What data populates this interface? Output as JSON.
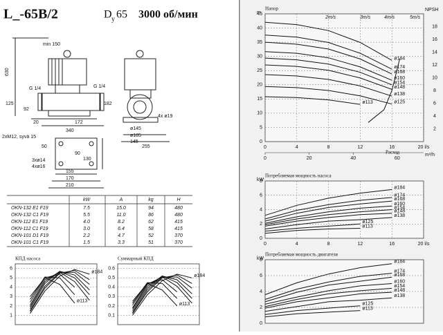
{
  "header": {
    "title": "L_-65B/2",
    "dn_letter": "D",
    "dn_sub": "у",
    "dn_value": "65",
    "speed": "3000 об/мин"
  },
  "drawing": {
    "labels": [
      "min 150",
      "630",
      "G 1/4",
      "G 1/4",
      "125",
      "92",
      "20",
      "172",
      "340",
      "2xM12, syvä 15",
      "182",
      "4x ø19",
      "ø145",
      "ø185",
      "145",
      "255",
      "50",
      "90",
      "130",
      "3xø14",
      "4xø16",
      "155",
      "170",
      "210"
    ]
  },
  "table": {
    "header": [
      "kW",
      "A",
      "kg",
      "H"
    ],
    "rows": [
      [
        "OKN-132 E1 F19",
        "7.5",
        "15.0",
        "94",
        "480"
      ],
      [
        "OKN-132 C1 F19",
        "5.5",
        "11.0",
        "86",
        "480"
      ],
      [
        "OKN-112 E1 F19",
        "4.0",
        "8.2",
        "62",
        "415"
      ],
      [
        "OKN-112 C1 F19",
        "3.0",
        "6.4",
        "58",
        "415"
      ],
      [
        "OKN-101 D1 F19",
        "2.2",
        "4.7",
        "52",
        "370"
      ],
      [
        "OKN-101 C1 F19",
        "1.5",
        "3.3",
        "51",
        "370"
      ]
    ]
  },
  "chart_data": [
    {
      "type": "line",
      "title": "Напор",
      "y_label": "m",
      "x_label": "Расход",
      "color": "#111",
      "x": [
        0,
        4,
        8,
        12,
        16
      ],
      "xlim": [
        0,
        20
      ],
      "xticks": [
        0,
        4,
        8,
        12,
        16,
        {
          "value": 20,
          "label": "20 l/s"
        }
      ],
      "x2lim": [
        0,
        72
      ],
      "x2ticks": [
        0,
        20,
        40,
        60
      ],
      "x2_label": "m³/h",
      "ylim": [
        0,
        45
      ],
      "yticks": [
        0,
        5,
        10,
        15,
        20,
        25,
        30,
        35,
        40,
        45
      ],
      "y2_label": "NPSH",
      "y2lim": [
        0,
        20
      ],
      "y2ticks": [
        2,
        4,
        6,
        8,
        10,
        12,
        14,
        16,
        18
      ],
      "velocity_labels": [
        "2m/s",
        "3m/s",
        "4m/s",
        "5m/s"
      ],
      "series": [
        {
          "name": "ø184",
          "values": [
            42,
            41.2,
            39.1,
            34.9,
            28.6
          ]
        },
        {
          "name": "ø174",
          "values": [
            37.5,
            36.8,
            34.9,
            31.1,
            25.5
          ]
        },
        {
          "name": "ø168",
          "values": [
            35,
            34.3,
            32.6,
            29.1,
            23.8
          ]
        },
        {
          "name": "ø160",
          "values": [
            31.7,
            31.1,
            29.5,
            26.3,
            21.6
          ]
        },
        {
          "name": "ø154",
          "values": [
            29.4,
            28.8,
            27.3,
            24.4,
            20
          ]
        },
        {
          "name": "ø148",
          "values": [
            27,
            26.5,
            25.1,
            22.4,
            18.4
          ]
        },
        {
          "name": "ø138",
          "values": [
            23.6,
            23.1,
            21.9,
            19.6,
            16
          ]
        },
        {
          "name": "ø125",
          "values": [
            19.4,
            19,
            18,
            16.1,
            13.2
          ]
        },
        {
          "name": "ø113",
          "values": [
            15.8,
            15.5,
            14.7,
            13.1,
            null
          ]
        },
        {
          "axis": "y2",
          "x": [
            13,
            15,
            16,
            17
          ],
          "values": [
            3,
            5,
            8,
            13
          ]
        }
      ]
    },
    {
      "type": "line",
      "title": "Потребляемая мощность насоса",
      "y_label": "kW",
      "color": "#111",
      "x": [
        0,
        4,
        8,
        12,
        16
      ],
      "xlim": [
        0,
        20
      ],
      "xticks": [
        0,
        4,
        8,
        12,
        16,
        {
          "value": 20,
          "label": "20 l/s"
        }
      ],
      "ylim": [
        0,
        8
      ],
      "yticks": [
        0,
        2,
        4,
        6,
        8
      ],
      "series": [
        {
          "name": "ø184",
          "values": [
            3.2,
            4.6,
            5.6,
            6.3,
            6.8
          ]
        },
        {
          "name": "ø174",
          "values": [
            2.7,
            3.9,
            4.7,
            5.3,
            5.7
          ]
        },
        {
          "name": "ø168",
          "values": [
            2.4,
            3.5,
            4.3,
            4.8,
            5.2
          ]
        },
        {
          "name": "ø160",
          "values": [
            2.1,
            3.0,
            3.7,
            4.2,
            4.5
          ]
        },
        {
          "name": "ø154",
          "values": [
            1.9,
            2.7,
            3.3,
            3.7,
            4.0
          ]
        },
        {
          "name": "ø148",
          "values": [
            1.7,
            2.4,
            2.9,
            3.3,
            3.5
          ]
        },
        {
          "name": "ø138",
          "values": [
            1.3,
            1.9,
            2.4,
            2.6,
            2.9
          ]
        },
        {
          "name": "ø125",
          "values": [
            1.0,
            1.4,
            1.7,
            2.0,
            null
          ]
        },
        {
          "name": "ø113",
          "values": [
            0.7,
            1.1,
            1.3,
            1.4,
            null
          ]
        }
      ]
    },
    {
      "type": "line",
      "title": "Потребляемая мощность двигателя",
      "y_label": "kW",
      "color": "#111",
      "x": [
        0,
        4,
        8,
        12,
        16
      ],
      "xlim": [
        0,
        20
      ],
      "ylim": [
        0,
        8
      ],
      "yticks": [
        0,
        2,
        4,
        6,
        8
      ],
      "series": [
        {
          "name": "ø184",
          "values": [
            3.6,
            5.1,
            6.2,
            7.0,
            7.5
          ]
        },
        {
          "name": "ø174",
          "values": [
            3.0,
            4.3,
            5.2,
            5.9,
            6.3
          ]
        },
        {
          "name": "ø168",
          "values": [
            2.7,
            3.9,
            4.8,
            5.3,
            5.8
          ]
        },
        {
          "name": "ø160",
          "values": [
            2.4,
            3.3,
            4.1,
            4.7,
            5.0
          ]
        },
        {
          "name": "ø154",
          "values": [
            2.1,
            3.0,
            3.7,
            4.1,
            4.4
          ]
        },
        {
          "name": "ø148",
          "values": [
            1.9,
            2.7,
            3.2,
            3.7,
            3.9
          ]
        },
        {
          "name": "ø138",
          "values": [
            1.5,
            2.1,
            2.7,
            2.9,
            3.2
          ]
        },
        {
          "name": "ø125",
          "values": [
            1.1,
            1.6,
            1.9,
            2.2,
            null
          ]
        },
        {
          "name": "ø113",
          "values": [
            0.8,
            1.2,
            1.4,
            1.6,
            null
          ]
        }
      ]
    },
    {
      "type": "line",
      "title": "КПД насоса",
      "color": "#111",
      "categories": [
        null,
        null,
        null,
        null,
        null
      ],
      "ylim": [
        0,
        6.5
      ],
      "yticks": [
        1,
        2,
        3,
        4,
        5,
        6
      ],
      "series": [
        {
          "name": "ø184",
          "values": [
            1.2,
            3.6,
            5.2,
            5.9,
            5.4
          ]
        },
        {
          "values": [
            1.4,
            3.9,
            5.5,
            5.8,
            4.8
          ]
        },
        {
          "values": [
            1.5,
            4.1,
            5.6,
            5.6,
            4.3
          ]
        },
        {
          "values": [
            1.7,
            4.4,
            5.7,
            5.3,
            3.7
          ]
        },
        {
          "values": [
            1.9,
            4.6,
            5.7,
            5.0,
            3.2
          ]
        },
        {
          "values": [
            2.1,
            4.8,
            5.6,
            4.6,
            2.6
          ]
        },
        {
          "values": [
            2.4,
            5.0,
            5.4,
            4.0,
            null
          ]
        },
        {
          "values": [
            2.7,
            5.1,
            5.0,
            3.2,
            null
          ]
        },
        {
          "name": "ø113",
          "values": [
            3.0,
            5.0,
            4.3,
            2.3,
            null
          ]
        }
      ]
    },
    {
      "type": "line",
      "title": "Суммарный КПД",
      "color": "#111",
      "categories": [
        null,
        null,
        null,
        null,
        null
      ],
      "ylim": [
        0,
        0.65
      ],
      "yticks": [
        0.1,
        0.2,
        0.3,
        0.4,
        0.5,
        0.6
      ],
      "series": [
        {
          "name": "ø184",
          "values": [
            0.1,
            0.32,
            0.47,
            0.54,
            0.5
          ]
        },
        {
          "values": [
            0.12,
            0.35,
            0.5,
            0.53,
            0.44
          ]
        },
        {
          "values": [
            0.13,
            0.37,
            0.51,
            0.51,
            0.39
          ]
        },
        {
          "values": [
            0.15,
            0.39,
            0.52,
            0.48,
            0.33
          ]
        },
        {
          "values": [
            0.17,
            0.41,
            0.52,
            0.45,
            0.28
          ]
        },
        {
          "values": [
            0.18,
            0.43,
            0.51,
            0.41,
            0.23
          ]
        },
        {
          "values": [
            0.21,
            0.44,
            0.48,
            0.35,
            null
          ]
        },
        {
          "values": [
            0.23,
            0.45,
            0.44,
            0.28,
            null
          ]
        },
        {
          "name": "ø113",
          "values": [
            0.25,
            0.44,
            0.37,
            0.2,
            null
          ]
        }
      ]
    }
  ]
}
